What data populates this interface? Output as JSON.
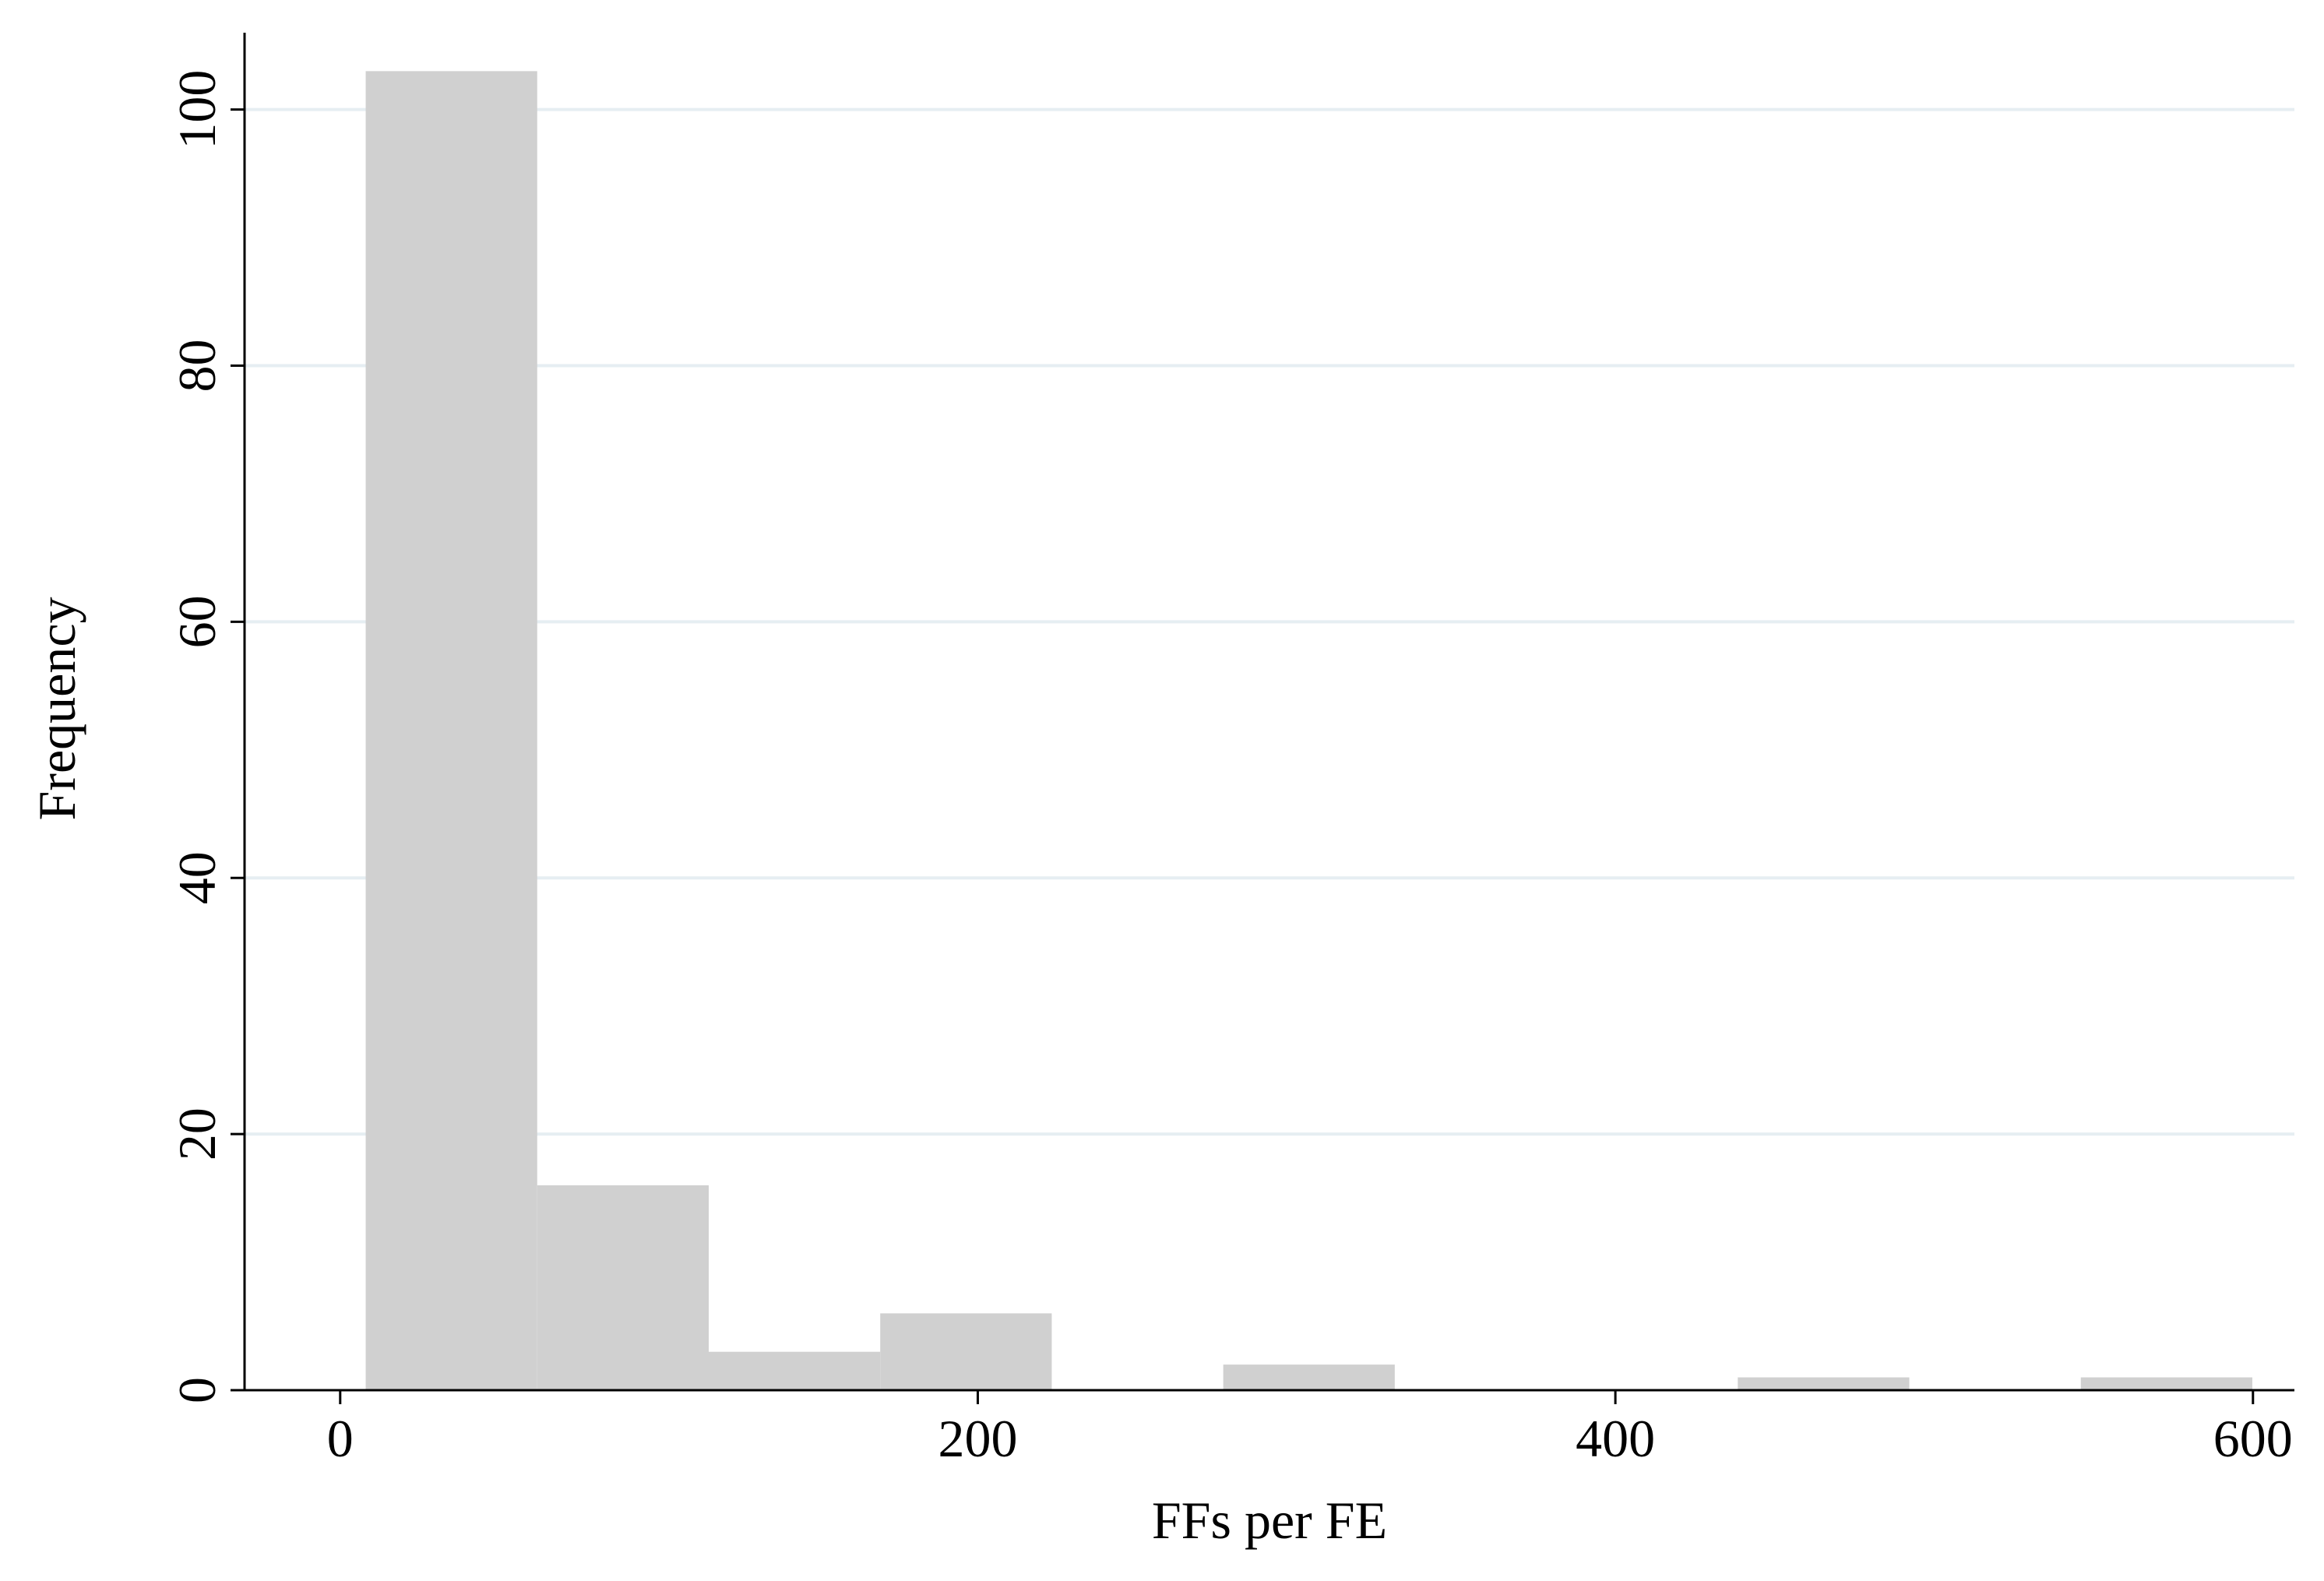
{
  "chart_data": {
    "type": "histogram",
    "xlabel": "FFs per FE",
    "ylabel": "Frequency",
    "bins": [
      8,
      61.8,
      115.6,
      169.4,
      223.2,
      277,
      330.8,
      384.6,
      438.4,
      492.2,
      546,
      599.8
    ],
    "values": [
      103,
      16,
      3,
      6,
      0,
      2,
      0,
      0,
      1,
      0,
      1
    ],
    "color": "#d0d0d0",
    "xlim": [
      -30,
      613
    ],
    "ylim": [
      0,
      106
    ],
    "xticks": [
      0,
      200,
      400,
      600
    ],
    "yticks": [
      0,
      20,
      40,
      60,
      80,
      100
    ],
    "grid": true
  }
}
